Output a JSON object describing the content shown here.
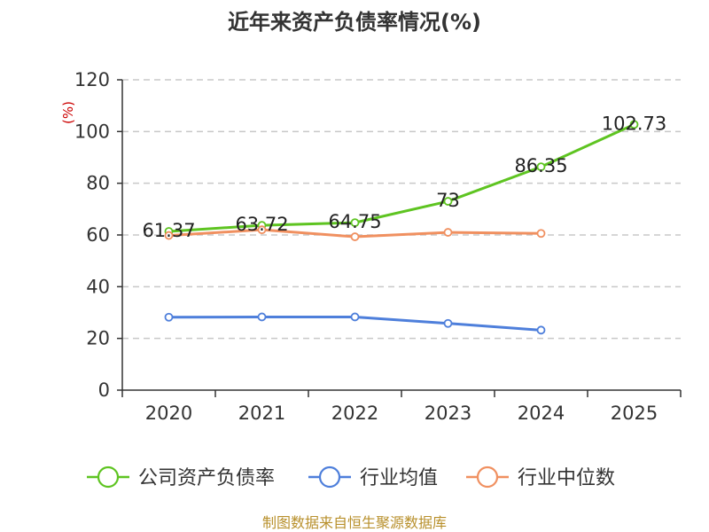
{
  "chart_data": {
    "type": "line",
    "title": "近年来资产负债率情况(%)",
    "ylabel": "(%)",
    "ylim": [
      0,
      120
    ],
    "yticks": [
      0,
      20,
      40,
      60,
      80,
      100,
      120
    ],
    "categories": [
      "2020",
      "2021",
      "2022",
      "2023",
      "2024",
      "2025"
    ],
    "grid": true,
    "legend_position": "bottom",
    "series": [
      {
        "name": "公司资产负债率",
        "color": "#5ec421",
        "values": [
          61.37,
          63.72,
          64.75,
          73,
          86.35,
          102.73
        ],
        "labels": [
          "61.37",
          "63.72",
          "64.75",
          "73",
          "86.35",
          "102.73"
        ]
      },
      {
        "name": "行业均值",
        "color": "#4e7fdb",
        "values": [
          28.2,
          28.3,
          28.3,
          25.8,
          23.2,
          null
        ]
      },
      {
        "name": "行业中位数",
        "color": "#f09060",
        "values": [
          59.8,
          62.0,
          59.3,
          61.0,
          60.6,
          null
        ]
      }
    ]
  },
  "source_text": "制图数据来自恒生聚源数据库"
}
